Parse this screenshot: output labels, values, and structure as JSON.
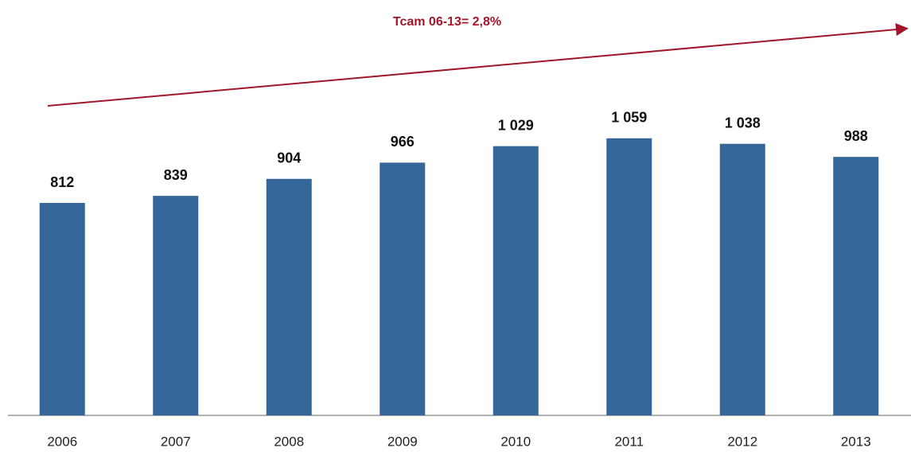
{
  "chart_data": {
    "type": "bar",
    "annotation": "Tcam 06-13= 2,8%",
    "categories": [
      "2006",
      "2007",
      "2008",
      "2009",
      "2010",
      "2011",
      "2012",
      "2013"
    ],
    "values": [
      812,
      839,
      904,
      966,
      1029,
      1059,
      1038,
      988
    ],
    "value_labels": [
      "812",
      "839",
      "904",
      "966",
      "1 029",
      "1 059",
      "1 038",
      "988"
    ],
    "color": "#346699"
  }
}
